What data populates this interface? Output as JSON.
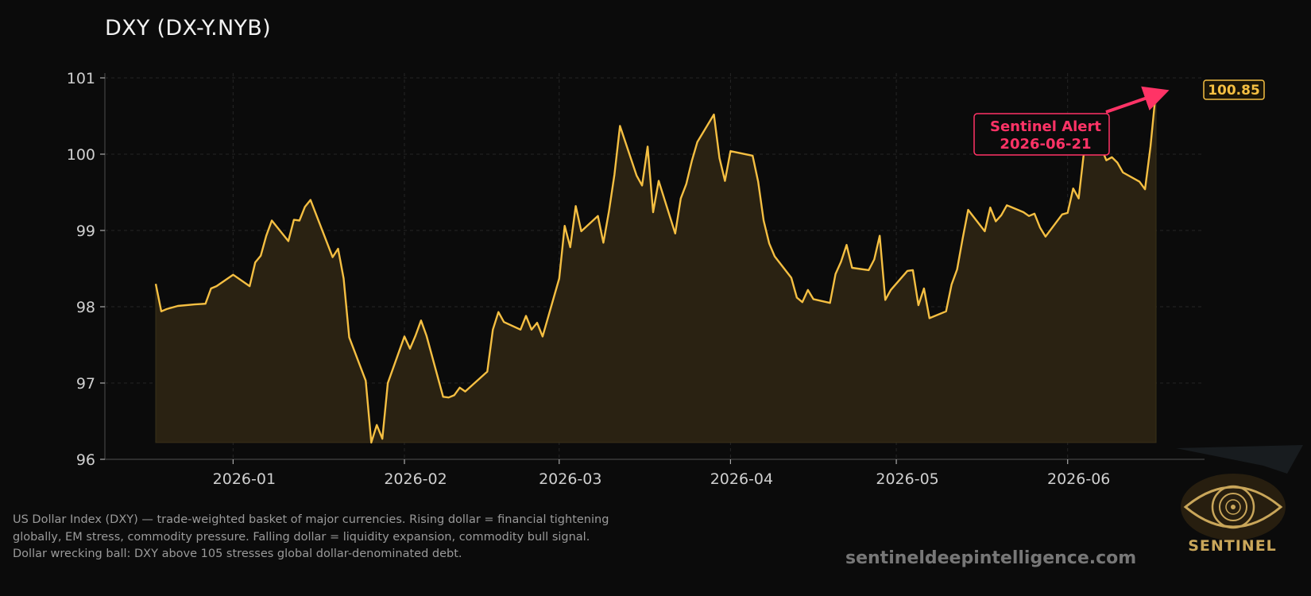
{
  "title": "DXY (DX-Y.NYB)",
  "chart_data": {
    "type": "area",
    "title": "DXY (DX-Y.NYB)",
    "xlabel": "",
    "ylabel": "",
    "ylim": [
      96,
      101
    ],
    "y_ticks": [
      96,
      97,
      98,
      99,
      100,
      101
    ],
    "x_range": [
      "2025-12-18",
      "2026-06-28"
    ],
    "x_ticks": [
      "2026-01-01",
      "2026-02-01",
      "2026-03-01",
      "2026-04-01",
      "2026-05-01",
      "2026-06-01"
    ],
    "x_tick_labels": [
      "2026-01",
      "2026-02",
      "2026-03",
      "2026-04",
      "2026-05",
      "2026-06"
    ],
    "grid": true,
    "line_color": "#f5bf42",
    "fill_color": "#2a2212",
    "baseline": 96.22,
    "series": [
      {
        "name": "",
        "points": [
          [
            "2025-12-18",
            98.3
          ],
          [
            "2025-12-19",
            97.94
          ],
          [
            "2025-12-20",
            97.97
          ],
          [
            "2025-12-22",
            98.01
          ],
          [
            "2025-12-25",
            98.03
          ],
          [
            "2025-12-27",
            98.04
          ],
          [
            "2025-12-28",
            98.24
          ],
          [
            "2025-12-29",
            98.27
          ],
          [
            "2026-01-01",
            98.42
          ],
          [
            "2026-01-04",
            98.27
          ],
          [
            "2026-01-05",
            98.58
          ],
          [
            "2026-01-06",
            98.67
          ],
          [
            "2026-01-07",
            98.93
          ],
          [
            "2026-01-08",
            99.13
          ],
          [
            "2026-01-11",
            98.86
          ],
          [
            "2026-01-12",
            99.14
          ],
          [
            "2026-01-13",
            99.13
          ],
          [
            "2026-01-14",
            99.31
          ],
          [
            "2026-01-15",
            99.4
          ],
          [
            "2026-01-19",
            98.65
          ],
          [
            "2026-01-20",
            98.76
          ],
          [
            "2026-01-21",
            98.37
          ],
          [
            "2026-01-22",
            97.6
          ],
          [
            "2026-01-25",
            97.03
          ],
          [
            "2026-01-26",
            96.22
          ],
          [
            "2026-01-27",
            96.45
          ],
          [
            "2026-01-28",
            96.27
          ],
          [
            "2026-01-29",
            97.0
          ],
          [
            "2026-02-01",
            97.61
          ],
          [
            "2026-02-02",
            97.45
          ],
          [
            "2026-02-03",
            97.62
          ],
          [
            "2026-02-04",
            97.82
          ],
          [
            "2026-02-05",
            97.62
          ],
          [
            "2026-02-08",
            96.82
          ],
          [
            "2026-02-09",
            96.81
          ],
          [
            "2026-02-10",
            96.84
          ],
          [
            "2026-02-11",
            96.94
          ],
          [
            "2026-02-12",
            96.89
          ],
          [
            "2026-02-16",
            97.15
          ],
          [
            "2026-02-17",
            97.7
          ],
          [
            "2026-02-18",
            97.93
          ],
          [
            "2026-02-19",
            97.8
          ],
          [
            "2026-02-22",
            97.7
          ],
          [
            "2026-02-23",
            97.88
          ],
          [
            "2026-02-24",
            97.7
          ],
          [
            "2026-02-25",
            97.79
          ],
          [
            "2026-02-26",
            97.61
          ],
          [
            "2026-03-01",
            98.37
          ],
          [
            "2026-03-02",
            99.06
          ],
          [
            "2026-03-03",
            98.78
          ],
          [
            "2026-03-04",
            99.32
          ],
          [
            "2026-03-05",
            98.99
          ],
          [
            "2026-03-08",
            99.19
          ],
          [
            "2026-03-09",
            98.84
          ],
          [
            "2026-03-10",
            99.25
          ],
          [
            "2026-03-11",
            99.73
          ],
          [
            "2026-03-12",
            100.37
          ],
          [
            "2026-03-15",
            99.72
          ],
          [
            "2026-03-16",
            99.59
          ],
          [
            "2026-03-17",
            100.1
          ],
          [
            "2026-03-18",
            99.24
          ],
          [
            "2026-03-19",
            99.65
          ],
          [
            "2026-03-22",
            98.96
          ],
          [
            "2026-03-23",
            99.42
          ],
          [
            "2026-03-24",
            99.61
          ],
          [
            "2026-03-25",
            99.91
          ],
          [
            "2026-03-26",
            100.16
          ],
          [
            "2026-03-29",
            100.52
          ],
          [
            "2026-03-30",
            99.95
          ],
          [
            "2026-03-31",
            99.65
          ],
          [
            "2026-04-01",
            100.04
          ],
          [
            "2026-04-05",
            99.98
          ],
          [
            "2026-04-06",
            99.64
          ],
          [
            "2026-04-07",
            99.13
          ],
          [
            "2026-04-08",
            98.83
          ],
          [
            "2026-04-09",
            98.66
          ],
          [
            "2026-04-12",
            98.38
          ],
          [
            "2026-04-13",
            98.12
          ],
          [
            "2026-04-14",
            98.06
          ],
          [
            "2026-04-15",
            98.22
          ],
          [
            "2026-04-16",
            98.1
          ],
          [
            "2026-04-19",
            98.05
          ],
          [
            "2026-04-20",
            98.43
          ],
          [
            "2026-04-21",
            98.59
          ],
          [
            "2026-04-22",
            98.81
          ],
          [
            "2026-04-23",
            98.51
          ],
          [
            "2026-04-26",
            98.48
          ],
          [
            "2026-04-27",
            98.62
          ],
          [
            "2026-04-28",
            98.93
          ],
          [
            "2026-04-29",
            98.09
          ],
          [
            "2026-04-30",
            98.22
          ],
          [
            "2026-05-03",
            98.47
          ],
          [
            "2026-05-04",
            98.48
          ],
          [
            "2026-05-05",
            98.02
          ],
          [
            "2026-05-06",
            98.24
          ],
          [
            "2026-05-07",
            97.85
          ],
          [
            "2026-05-10",
            97.94
          ],
          [
            "2026-05-11",
            98.29
          ],
          [
            "2026-05-12",
            98.49
          ],
          [
            "2026-05-13",
            98.89
          ],
          [
            "2026-05-14",
            99.27
          ],
          [
            "2026-05-17",
            98.99
          ],
          [
            "2026-05-18",
            99.3
          ],
          [
            "2026-05-19",
            99.12
          ],
          [
            "2026-05-20",
            99.2
          ],
          [
            "2026-05-21",
            99.33
          ],
          [
            "2026-05-24",
            99.24
          ],
          [
            "2026-05-25",
            99.19
          ],
          [
            "2026-05-26",
            99.22
          ],
          [
            "2026-05-27",
            99.04
          ],
          [
            "2026-05-28",
            98.92
          ],
          [
            "2026-05-31",
            99.21
          ],
          [
            "2026-06-01",
            99.23
          ],
          [
            "2026-06-02",
            99.55
          ],
          [
            "2026-06-03",
            99.42
          ],
          [
            "2026-06-04",
            100.06
          ],
          [
            "2026-06-07",
            100.1
          ],
          [
            "2026-06-08",
            99.92
          ],
          [
            "2026-06-09",
            99.96
          ],
          [
            "2026-06-10",
            99.89
          ],
          [
            "2026-06-11",
            99.76
          ],
          [
            "2026-06-14",
            99.64
          ],
          [
            "2026-06-15",
            99.54
          ],
          [
            "2026-06-16",
            100.1
          ],
          [
            "2026-06-17",
            100.85
          ]
        ]
      }
    ],
    "last_value_label": "100.85",
    "annotation": {
      "text_line1": "Sentinel Alert",
      "text_line2": "2026-06-21",
      "color": "#ff3366"
    }
  },
  "footnote": {
    "line1": "US Dollar Index (DXY) — trade-weighted basket of major currencies. Rising dollar = financial tightening",
    "line2": "globally, EM stress, commodity pressure. Falling dollar = liquidity expansion, commodity bull signal.",
    "line3": "Dollar wrecking ball: DXY above 105 stresses global dollar-denominated debt."
  },
  "website": "sentineldeepintelligence.com",
  "logo_text": "SENTINEL"
}
